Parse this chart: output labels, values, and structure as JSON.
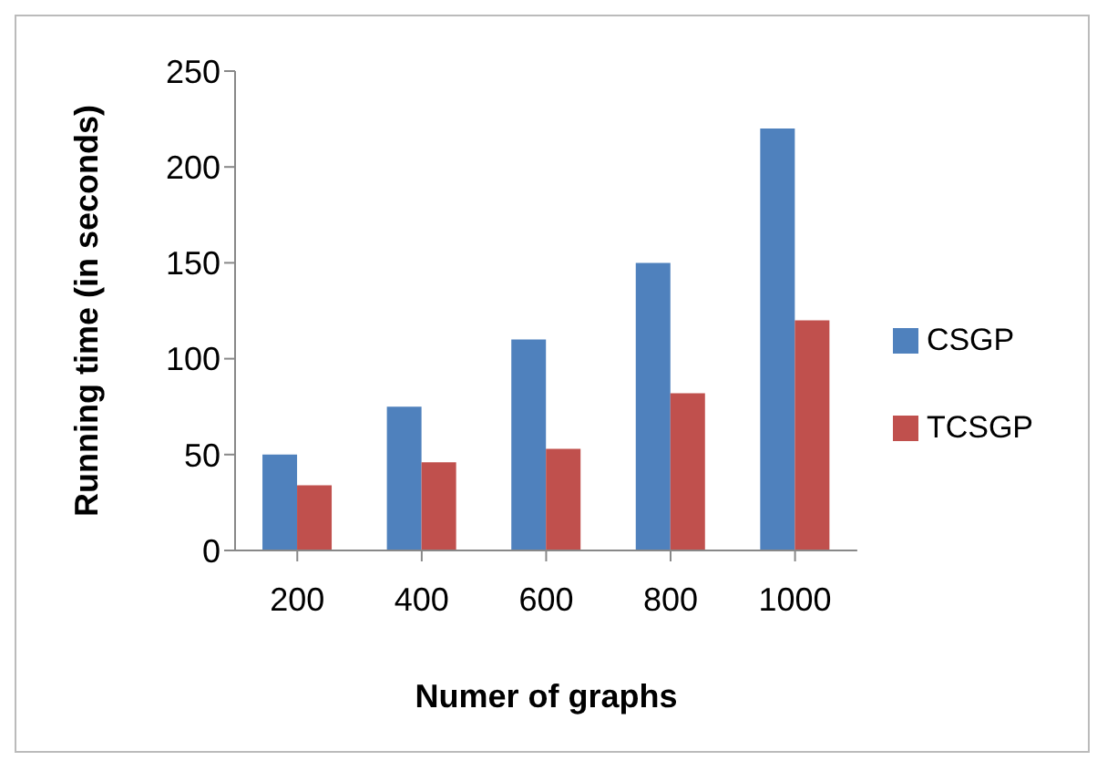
{
  "chart_data": {
    "type": "bar",
    "xlabel": "Numer of graphs",
    "ylabel": "Running time (in seconds)",
    "categories": [
      "200",
      "400",
      "600",
      "800",
      "1000"
    ],
    "series": [
      {
        "name": "CSGP",
        "color": "#4f81bd",
        "values": [
          50,
          75,
          110,
          150,
          220
        ]
      },
      {
        "name": "TCSGP",
        "color": "#c0504d",
        "values": [
          34,
          46,
          53,
          82,
          120
        ]
      }
    ],
    "ylim": [
      0,
      250
    ],
    "yticks": [
      0,
      50,
      100,
      150,
      200,
      250
    ],
    "grid": false,
    "legend": "right"
  }
}
